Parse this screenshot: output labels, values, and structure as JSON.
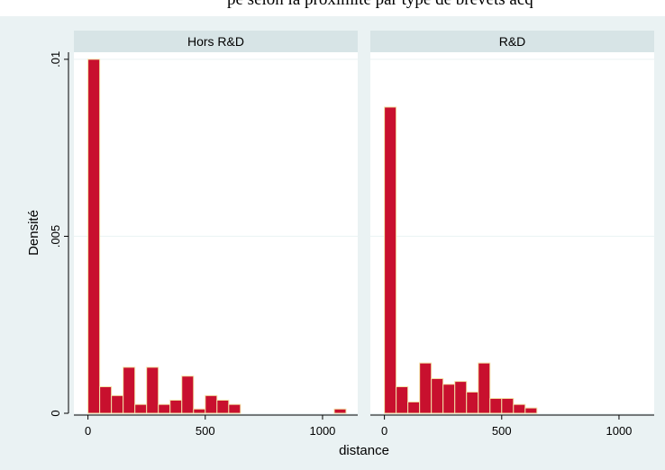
{
  "top_text": "pe selon la proximité par type de brevets acq",
  "chart_data": {
    "type": "bar",
    "xlabel": "distance",
    "ylabel": "Densité",
    "x_ticks": [
      0,
      500,
      1000
    ],
    "y_ticks": [
      0,
      0.005,
      0.01
    ],
    "y_tick_labels": [
      "0",
      ".005",
      ".01"
    ],
    "xlim": [
      -60,
      1150
    ],
    "ylim": [
      0,
      0.0102
    ],
    "bin_width": 50,
    "bar_color": "#c8102e",
    "bar_edge_color": "#f3e3a8",
    "panel_bg": "#eaf2f3",
    "strip_bg": "#d7e4e6",
    "panels": [
      {
        "label": "Hors R&D",
        "bins_start": [
          0,
          50,
          100,
          150,
          200,
          250,
          300,
          350,
          400,
          450,
          500,
          550,
          600,
          650,
          700,
          1050
        ],
        "values": [
          0.01,
          0.00075,
          0.0005,
          0.0013,
          0.00025,
          0.0013,
          0.00025,
          0.00037,
          0.00105,
          0.00012,
          0.0005,
          0.00037,
          0.00025,
          0.0,
          0.0,
          0.00012
        ]
      },
      {
        "label": "R&D",
        "bins_start": [
          0,
          50,
          100,
          150,
          200,
          250,
          300,
          350,
          400,
          450,
          500,
          550,
          600,
          650,
          700
        ],
        "values": [
          0.00865,
          0.00075,
          0.00032,
          0.00142,
          0.00098,
          0.00082,
          0.0009,
          0.0006,
          0.00142,
          0.00042,
          0.00042,
          0.00025,
          0.00015,
          0.0,
          0.0
        ]
      }
    ]
  }
}
